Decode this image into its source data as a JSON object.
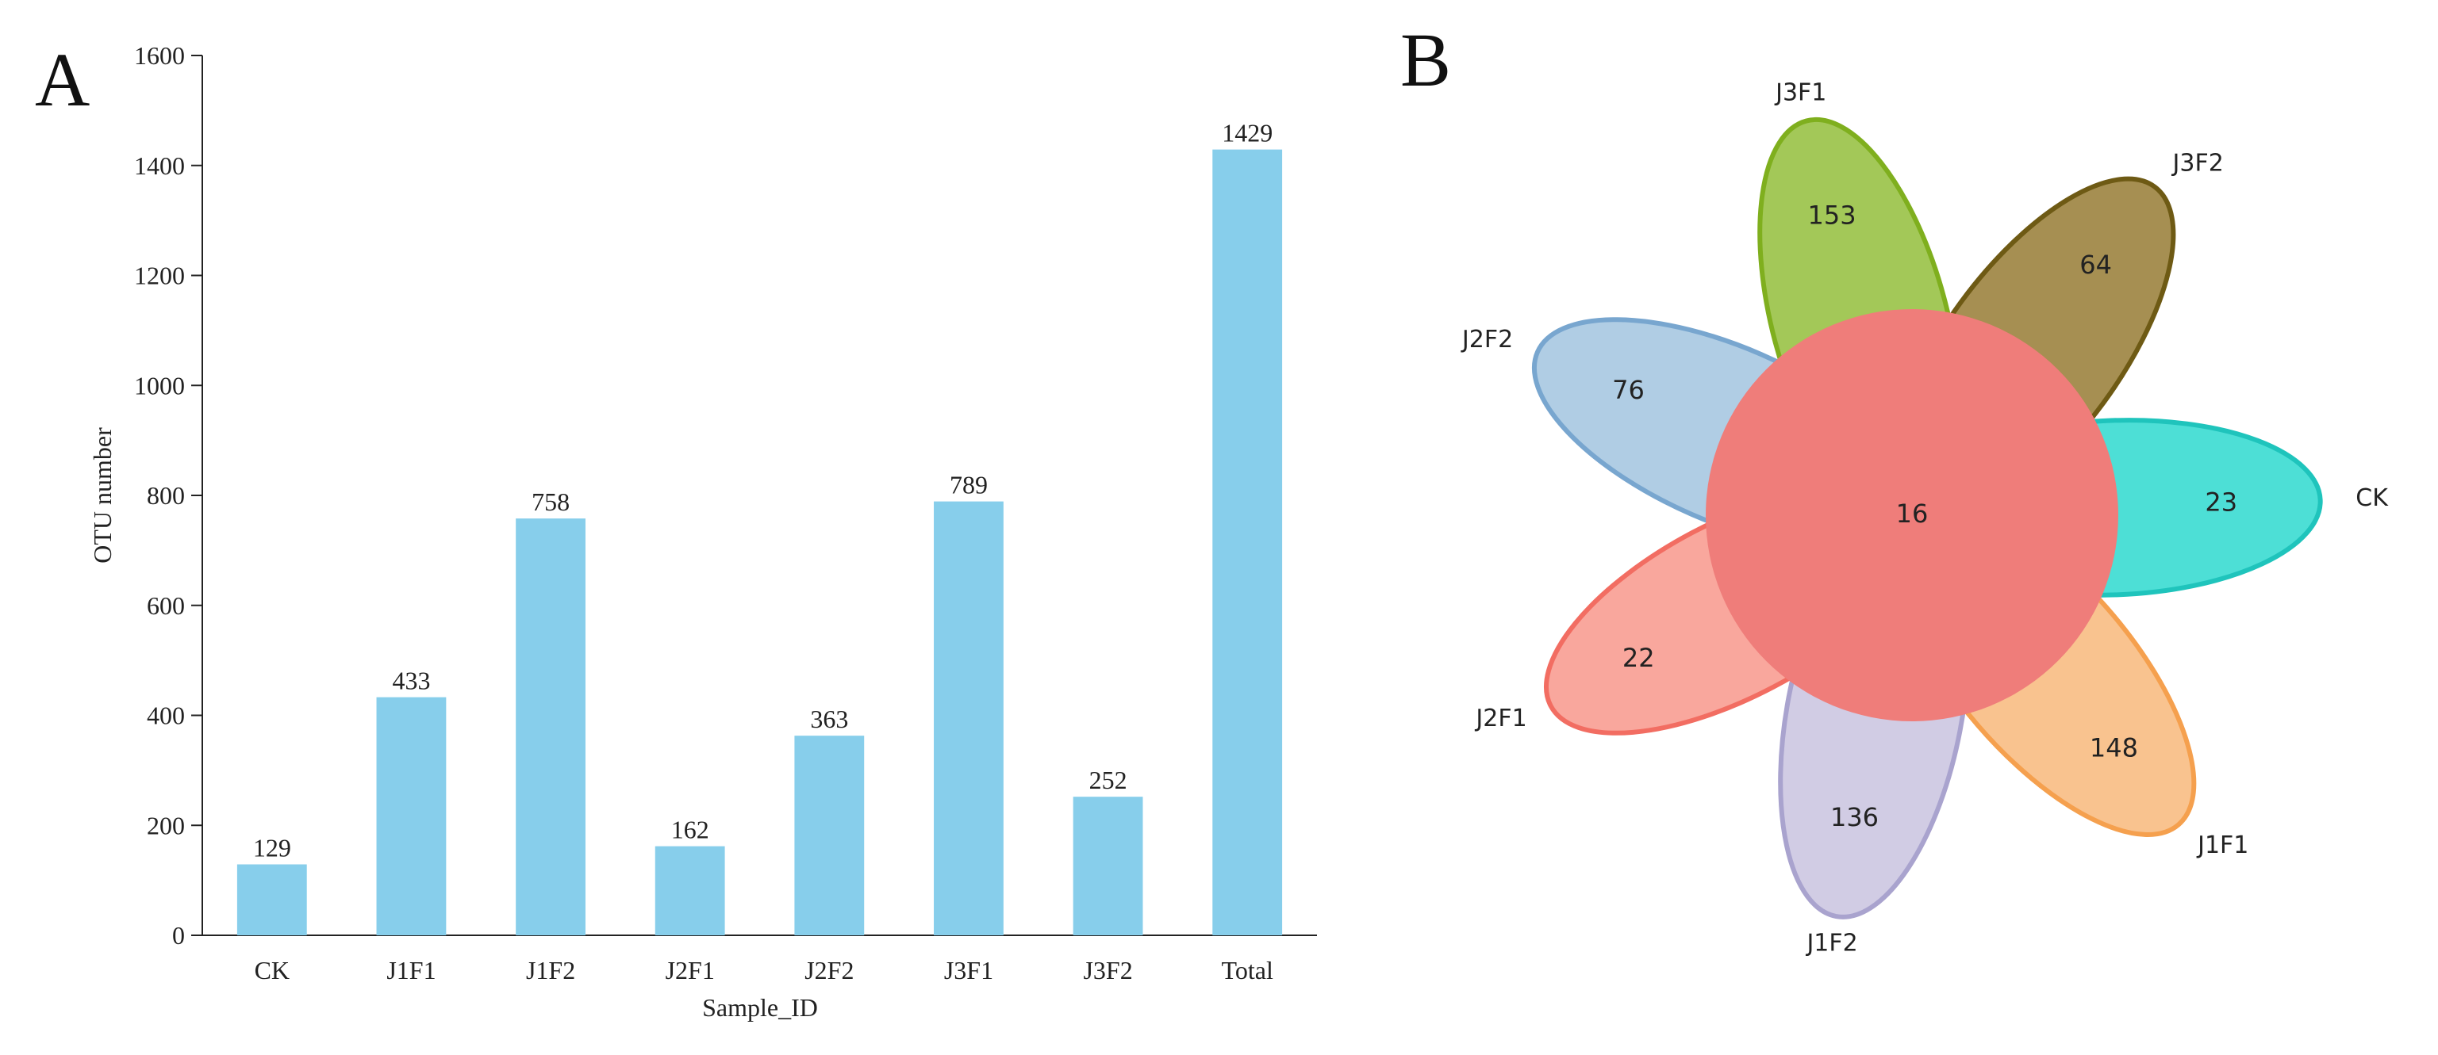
{
  "panel_a": {
    "letter": "A",
    "color": "#87CEEB"
  },
  "panel_b": {
    "letter": "B"
  },
  "chart_data": [
    {
      "type": "bar",
      "title": "",
      "xlabel": "Sample_ID",
      "ylabel": "OTU number",
      "categories": [
        "CK",
        "J1F1",
        "J1F2",
        "J2F1",
        "J2F2",
        "J3F1",
        "J3F2",
        "Total"
      ],
      "values": [
        129,
        433,
        758,
        162,
        363,
        789,
        252,
        1429
      ],
      "data_labels": [
        "129",
        "433",
        "758",
        "162",
        "363",
        "789",
        "252",
        "1429"
      ],
      "ylim": [
        0,
        1600
      ],
      "yticks": [
        0,
        200,
        400,
        600,
        800,
        1000,
        1200,
        1400,
        1600
      ],
      "ytick_labels": [
        "0",
        "200",
        "400",
        "600",
        "800",
        "1000",
        "1200",
        "1400",
        "1600"
      ],
      "grid": false
    },
    {
      "type": "venn",
      "title": "",
      "sets": [
        {
          "name": "J3F1",
          "unique": 153,
          "color": "#9BC34A",
          "stroke": "#7FAF1E"
        },
        {
          "name": "J3F2",
          "unique": 64,
          "color": "#9E8643",
          "stroke": "#6E5A14"
        },
        {
          "name": "CK",
          "unique": 23,
          "color": "#3EDCD2",
          "stroke": "#1FC4BC"
        },
        {
          "name": "J1F1",
          "unique": 148,
          "color": "#F9BE85",
          "stroke": "#F5A04E"
        },
        {
          "name": "J1F2",
          "unique": 136,
          "color": "#CDC8E2",
          "stroke": "#A9A3CE"
        },
        {
          "name": "J2F1",
          "unique": 22,
          "color": "#F99F95",
          "stroke": "#F26D62"
        },
        {
          "name": "J2F2",
          "unique": 76,
          "color": "#A9C9E2",
          "stroke": "#78A6CF"
        }
      ],
      "core": {
        "value": 16,
        "color": "#EF7D7A"
      }
    }
  ]
}
